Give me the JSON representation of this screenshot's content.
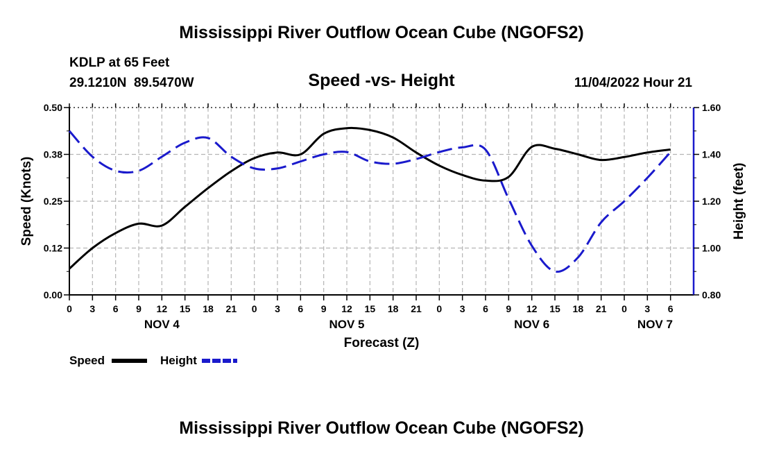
{
  "main_title": "Mississippi River Outflow Ocean Cube (NGOFS2)",
  "footer_title": "Mississippi River Outflow Ocean Cube (NGOFS2)",
  "station": {
    "name": "KDLP at 65 Feet",
    "coords": "29.1210N  89.5470W"
  },
  "subtitle": "Speed -vs- Height",
  "run_time": "11/04/2022 Hour 21",
  "legend": {
    "speed_label": "Speed",
    "height_label": "Height"
  },
  "colors": {
    "speed": "#000000",
    "height": "#1a1acc",
    "grid": "#b4b4b4"
  },
  "chart_data": {
    "type": "line",
    "title": "Speed -vs- Height",
    "xlabel": "Forecast (Z)",
    "ylabel_left": "Speed (Knots)",
    "ylabel_right": "Height (feet)",
    "x_range": [
      0,
      81
    ],
    "ylim_left": [
      0,
      0.5
    ],
    "ylim_right": [
      0.8,
      1.6
    ],
    "y_ticks_left": [
      {
        "v": 0,
        "label": "0.00"
      },
      {
        "v": 0.125,
        "label": "0.12"
      },
      {
        "v": 0.25,
        "label": "0.25"
      },
      {
        "v": 0.375,
        "label": "0.38"
      },
      {
        "v": 0.5,
        "label": "0.50"
      }
    ],
    "y_ticks_right": [
      {
        "v": 0.8,
        "label": "0.80"
      },
      {
        "v": 1.0,
        "label": "1.00"
      },
      {
        "v": 1.2,
        "label": "1.20"
      },
      {
        "v": 1.4,
        "label": "1.40"
      },
      {
        "v": 1.6,
        "label": "1.60"
      }
    ],
    "x_ticks": [
      {
        "x": 0,
        "label": "0"
      },
      {
        "x": 3,
        "label": "3"
      },
      {
        "x": 6,
        "label": "6"
      },
      {
        "x": 9,
        "label": "9"
      },
      {
        "x": 12,
        "label": "12"
      },
      {
        "x": 15,
        "label": "15"
      },
      {
        "x": 18,
        "label": "18"
      },
      {
        "x": 21,
        "label": "21"
      },
      {
        "x": 24,
        "label": "0"
      },
      {
        "x": 27,
        "label": "3"
      },
      {
        "x": 30,
        "label": "6"
      },
      {
        "x": 33,
        "label": "9"
      },
      {
        "x": 36,
        "label": "12"
      },
      {
        "x": 39,
        "label": "15"
      },
      {
        "x": 42,
        "label": "18"
      },
      {
        "x": 45,
        "label": "21"
      },
      {
        "x": 48,
        "label": "0"
      },
      {
        "x": 51,
        "label": "3"
      },
      {
        "x": 54,
        "label": "6"
      },
      {
        "x": 57,
        "label": "9"
      },
      {
        "x": 60,
        "label": "12"
      },
      {
        "x": 63,
        "label": "15"
      },
      {
        "x": 66,
        "label": "18"
      },
      {
        "x": 69,
        "label": "21"
      },
      {
        "x": 72,
        "label": "0"
      },
      {
        "x": 75,
        "label": "3"
      },
      {
        "x": 78,
        "label": "6"
      }
    ],
    "day_labels": [
      {
        "x": 12,
        "label": "NOV 4"
      },
      {
        "x": 36,
        "label": "NOV 5"
      },
      {
        "x": 60,
        "label": "NOV 6"
      },
      {
        "x": 76,
        "label": "NOV 7"
      }
    ],
    "series": [
      {
        "name": "Speed",
        "axis": "left",
        "style": "solid",
        "points": [
          [
            0,
            0.07
          ],
          [
            3,
            0.125
          ],
          [
            6,
            0.165
          ],
          [
            9,
            0.19
          ],
          [
            12,
            0.185
          ],
          [
            15,
            0.235
          ],
          [
            18,
            0.285
          ],
          [
            21,
            0.33
          ],
          [
            24,
            0.365
          ],
          [
            27,
            0.38
          ],
          [
            30,
            0.375
          ],
          [
            33,
            0.43
          ],
          [
            36,
            0.445
          ],
          [
            39,
            0.44
          ],
          [
            42,
            0.42
          ],
          [
            45,
            0.38
          ],
          [
            48,
            0.345
          ],
          [
            51,
            0.32
          ],
          [
            54,
            0.305
          ],
          [
            57,
            0.315
          ],
          [
            60,
            0.395
          ],
          [
            63,
            0.39
          ],
          [
            66,
            0.375
          ],
          [
            69,
            0.36
          ],
          [
            72,
            0.368
          ],
          [
            75,
            0.38
          ],
          [
            78,
            0.388
          ]
        ]
      },
      {
        "name": "Height",
        "axis": "right",
        "style": "dashed",
        "points": [
          [
            0,
            1.5
          ],
          [
            3,
            1.39
          ],
          [
            6,
            1.33
          ],
          [
            9,
            1.33
          ],
          [
            12,
            1.39
          ],
          [
            15,
            1.45
          ],
          [
            18,
            1.47
          ],
          [
            21,
            1.39
          ],
          [
            24,
            1.34
          ],
          [
            27,
            1.34
          ],
          [
            30,
            1.37
          ],
          [
            33,
            1.4
          ],
          [
            36,
            1.41
          ],
          [
            39,
            1.37
          ],
          [
            42,
            1.36
          ],
          [
            45,
            1.38
          ],
          [
            48,
            1.41
          ],
          [
            51,
            1.43
          ],
          [
            54,
            1.42
          ],
          [
            57,
            1.21
          ],
          [
            60,
            1.01
          ],
          [
            63,
            0.9
          ],
          [
            66,
            0.96
          ],
          [
            69,
            1.11
          ],
          [
            72,
            1.2
          ],
          [
            75,
            1.3
          ],
          [
            78,
            1.41
          ]
        ]
      }
    ]
  }
}
